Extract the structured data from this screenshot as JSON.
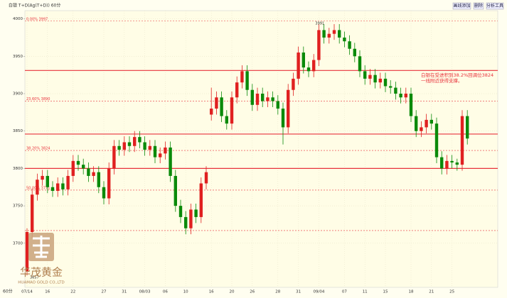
{
  "chart_data": {
    "type": "candlestick",
    "title": "白银 T+D(Ag(T+D)) 60分",
    "period": "60分",
    "categories": [
      "07/14",
      null,
      null,
      null,
      "16",
      null,
      null,
      null,
      null,
      "22",
      null,
      null,
      null,
      null,
      null,
      "27",
      null,
      null,
      null,
      "31",
      null,
      null,
      null,
      "08/03",
      null,
      null,
      null,
      "06",
      null,
      null,
      null,
      "10",
      null,
      null,
      null,
      null,
      "16",
      null,
      null,
      null,
      "20",
      null,
      null,
      null,
      "26",
      null,
      null,
      null,
      null,
      "28",
      null,
      null,
      null,
      "31",
      null,
      null,
      null,
      "09/04",
      null,
      null,
      null,
      null,
      "07",
      null,
      null,
      null,
      "11",
      null,
      null,
      null,
      "15",
      null,
      null,
      null,
      null,
      "18",
      null,
      null,
      null,
      "21",
      null,
      null,
      null,
      "25",
      null,
      null,
      null
    ],
    "series": [
      {
        "name": "open",
        "values": [
          3662,
          3715,
          3765,
          3785,
          3790,
          3775,
          3770,
          3780,
          3772,
          3790,
          3810,
          3805,
          3800,
          3790,
          3795,
          3775,
          3760,
          3800,
          3830,
          3825,
          3835,
          3830,
          3842,
          3835,
          3825,
          3830,
          3815,
          3820,
          3828,
          3790,
          3750,
          3735,
          3720,
          3745,
          3735,
          3780,
          3872,
          3880,
          3895,
          3870,
          3860,
          3895,
          3915,
          3930,
          3905,
          3885,
          3900,
          3890,
          3895,
          3890,
          3880,
          3855,
          3905,
          3920,
          3955,
          3935,
          3930,
          3945,
          3985,
          3975,
          3980,
          3985,
          3975,
          3970,
          3960,
          3950,
          3930,
          3920,
          3925,
          3915,
          3920,
          3910,
          3908,
          3900,
          3895,
          3900,
          3870,
          3850,
          3855,
          3865,
          3860,
          3815,
          3800,
          3810,
          3808,
          3805,
          3870
        ]
      },
      {
        "name": "high",
        "values": [
          3720,
          3773,
          3793,
          3798,
          3798,
          3783,
          3788,
          3788,
          3798,
          3818,
          3818,
          3813,
          3808,
          3803,
          3803,
          3783,
          3808,
          3838,
          3838,
          3843,
          3843,
          3850,
          3850,
          3843,
          3838,
          3838,
          3828,
          3836,
          3836,
          3798,
          3758,
          3743,
          3753,
          3753,
          3788,
          3803,
          3908,
          3903,
          3903,
          3878,
          3903,
          3923,
          3938,
          3938,
          3913,
          3908,
          3908,
          3903,
          3903,
          3898,
          3888,
          3913,
          3928,
          3963,
          3963,
          3943,
          3953,
          3993,
          3993,
          3988,
          3993,
          3993,
          3983,
          3978,
          3968,
          3958,
          3938,
          3933,
          3933,
          3928,
          3928,
          3918,
          3916,
          3908,
          3908,
          3908,
          3878,
          3863,
          3873,
          3873,
          3868,
          3823,
          3818,
          3818,
          3813,
          3878,
          3878
        ]
      },
      {
        "name": "low",
        "values": [
          3657,
          3707,
          3757,
          3777,
          3767,
          3762,
          3762,
          3764,
          3764,
          3782,
          3797,
          3792,
          3782,
          3782,
          3767,
          3752,
          3752,
          3792,
          3817,
          3817,
          3822,
          3822,
          3827,
          3817,
          3817,
          3807,
          3807,
          3812,
          3782,
          3742,
          3727,
          3712,
          3712,
          3727,
          3727,
          3772,
          3864,
          3872,
          3862,
          3852,
          3852,
          3887,
          3907,
          3897,
          3877,
          3877,
          3882,
          3882,
          3882,
          3872,
          3832,
          3847,
          3897,
          3912,
          3927,
          3922,
          3922,
          3937,
          3967,
          3967,
          3972,
          3967,
          3962,
          3952,
          3942,
          3922,
          3912,
          3912,
          3907,
          3907,
          3902,
          3900,
          3892,
          3887,
          3887,
          3862,
          3842,
          3842,
          3847,
          3852,
          3807,
          3792,
          3792,
          3800,
          3797,
          3797,
          3832
        ]
      },
      {
        "name": "close",
        "values": [
          3715,
          3765,
          3785,
          3790,
          3775,
          3770,
          3780,
          3772,
          3790,
          3810,
          3805,
          3800,
          3790,
          3795,
          3775,
          3760,
          3800,
          3830,
          3825,
          3835,
          3830,
          3842,
          3835,
          3825,
          3830,
          3815,
          3820,
          3828,
          3790,
          3750,
          3735,
          3720,
          3745,
          3735,
          3780,
          3795,
          3880,
          3895,
          3870,
          3860,
          3895,
          3915,
          3930,
          3905,
          3885,
          3900,
          3890,
          3895,
          3890,
          3880,
          3855,
          3905,
          3920,
          3955,
          3935,
          3930,
          3945,
          3985,
          3975,
          3980,
          3985,
          3975,
          3970,
          3960,
          3950,
          3930,
          3920,
          3925,
          3915,
          3920,
          3910,
          3908,
          3900,
          3895,
          3900,
          3870,
          3850,
          3855,
          3865,
          3860,
          3815,
          3800,
          3810,
          3808,
          3805,
          3870,
          3840
        ]
      }
    ],
    "up_color": "#e02020",
    "down_color": "#0a8a0a",
    "ylim": [
      3641,
      4011
    ],
    "yticks": [
      3700,
      3750,
      3800,
      3850,
      3900,
      3950,
      4000
    ],
    "grid": true,
    "hlines": [
      {
        "value": 3931,
        "color": "#e8323c"
      },
      {
        "value": 3846,
        "color": "#e8323c"
      },
      {
        "value": 3800,
        "color": "#e8323c"
      }
    ],
    "fib_lines": [
      {
        "value": 3997,
        "label": "0.00% 3997"
      },
      {
        "value": 3890,
        "label": "23.60% 3890"
      },
      {
        "value": 3824,
        "label": "38.20% 3824"
      },
      {
        "value": 3771,
        "label": "50.00% 3771"
      },
      {
        "value": 3717
      }
    ],
    "point_labels": [
      {
        "index": 57,
        "value": 3991,
        "label": "3991"
      },
      {
        "index": 0,
        "value": 3657,
        "label": "3657"
      }
    ],
    "annotation": [
      "白银在受进积到38.2%回调位3824",
      "一线附近获得支撑。"
    ]
  },
  "toolbar": [
    "画线添加",
    "删除",
    "分析工具"
  ],
  "logo": {
    "name": "华茂黄金",
    "subtitle": "HUAMAO GOLD CO.,LTD"
  }
}
